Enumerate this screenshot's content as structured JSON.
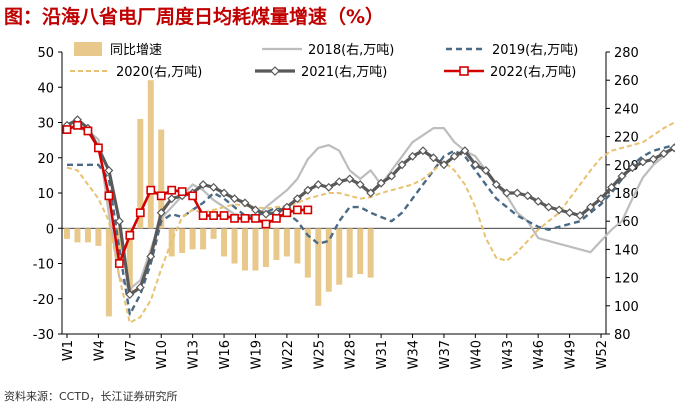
{
  "title": "图：沿海八省电厂周度日均耗煤量增速（%）",
  "source": "资料来源：CCTD，长江证券研究所",
  "colors": {
    "bar": "#e8c98b",
    "s2018": "#bdbdbd",
    "s2019": "#4a6a86",
    "s2020": "#e8c271",
    "s2021": "#595959",
    "s2022": "#d40000",
    "title": "#c00000"
  },
  "chart_data": {
    "type": "bar+line",
    "title": "沿海八省电厂周度日均耗煤量增速（%）",
    "x_labels": [
      "W1",
      "W4",
      "W7",
      "W10",
      "W13",
      "W16",
      "W19",
      "W22",
      "W25",
      "W28",
      "W31",
      "W34",
      "W37",
      "W40",
      "W43",
      "W46",
      "W49",
      "W52"
    ],
    "left_axis": {
      "ylim": [
        -30,
        50
      ],
      "ticks": [
        "50",
        "40",
        "30",
        "20",
        "10",
        "0",
        "-10",
        "-20",
        "-30"
      ]
    },
    "right_axis": {
      "ylim": [
        80,
        280
      ],
      "ticks": [
        "280",
        "260",
        "240",
        "220",
        "200",
        "180",
        "160",
        "140",
        "120",
        "100",
        "80"
      ]
    },
    "legend": [
      "同比增速",
      "2018(右,万吨)",
      "2019(右,万吨)",
      "2020(右,万吨)",
      "2021(右,万吨)",
      "2022(右,万吨)"
    ],
    "bars": {
      "name": "同比增速",
      "values": [
        -3,
        -4,
        -4,
        -5,
        -25,
        -8,
        -18,
        31,
        42,
        28,
        -8,
        -7,
        -6,
        -6,
        -3,
        -8,
        -10,
        -12,
        -12,
        -11,
        -9,
        -8,
        -10,
        -14,
        -22,
        -18,
        -16,
        -14,
        -13,
        -14
      ]
    },
    "series": [
      {
        "name": "2018(右,万吨)",
        "values": [
          228,
          226,
          224,
          218,
          165,
          120,
          112,
          118,
          140,
          162,
          170,
          178,
          186,
          182,
          175,
          170,
          165,
          164,
          162,
          170,
          176,
          182,
          190,
          204,
          212,
          214,
          210,
          196,
          190,
          196,
          186,
          196,
          206,
          216,
          221,
          226,
          226,
          216,
          210,
          206,
          196,
          186,
          178,
          166,
          160,
          148,
          146,
          144,
          142,
          140,
          138,
          146,
          154,
          160,
          176,
          191,
          200,
          206,
          213,
          218
        ]
      },
      {
        "name": "2019(右,万吨)",
        "values": [
          200,
          200,
          200,
          200,
          190,
          140,
          94,
          108,
          130,
          160,
          165,
          163,
          168,
          173,
          180,
          176,
          170,
          164,
          164,
          166,
          170,
          166,
          160,
          150,
          144,
          146,
          160,
          170,
          170,
          166,
          163,
          160,
          166,
          176,
          186,
          196,
          206,
          210,
          206,
          196,
          186,
          176,
          170,
          164,
          160,
          156,
          154,
          156,
          158,
          160,
          166,
          172,
          180,
          190,
          200,
          206,
          210,
          212,
          214,
          216
        ]
      },
      {
        "name": "2020(右,万吨)",
        "values": [
          198,
          196,
          186,
          176,
          160,
          120,
          88,
          92,
          104,
          126,
          146,
          163,
          168,
          166,
          168,
          170,
          172,
          171,
          170,
          169,
          170,
          171,
          173,
          176,
          178,
          180,
          180,
          178,
          176,
          177,
          180,
          182,
          184,
          186,
          190,
          196,
          202,
          196,
          186,
          170,
          148,
          134,
          132,
          138,
          146,
          154,
          160,
          166,
          176,
          186,
          196,
          205,
          210,
          212,
          214,
          216,
          221,
          226,
          230,
          234
        ]
      },
      {
        "name": "2021(右,万吨)",
        "values": [
          228,
          232,
          226,
          212,
          196,
          160,
          108,
          113,
          135,
          166,
          176,
          178,
          180,
          186,
          184,
          180,
          176,
          173,
          168,
          165,
          166,
          170,
          176,
          182,
          186,
          184,
          188,
          190,
          186,
          180,
          187,
          192,
          200,
          206,
          210,
          205,
          200,
          206,
          210,
          200,
          196,
          186,
          180,
          180,
          178,
          174,
          170,
          168,
          166,
          164,
          170,
          176,
          184,
          192,
          198,
          202,
          204,
          208,
          212,
          226
        ]
      },
      {
        "name": "2022(右,万吨)",
        "values": [
          225,
          228,
          224,
          212,
          178,
          130,
          150,
          166,
          182,
          178,
          182,
          181,
          178,
          164,
          164,
          164,
          162,
          162,
          162,
          158,
          162,
          166,
          168,
          168
        ]
      }
    ]
  }
}
